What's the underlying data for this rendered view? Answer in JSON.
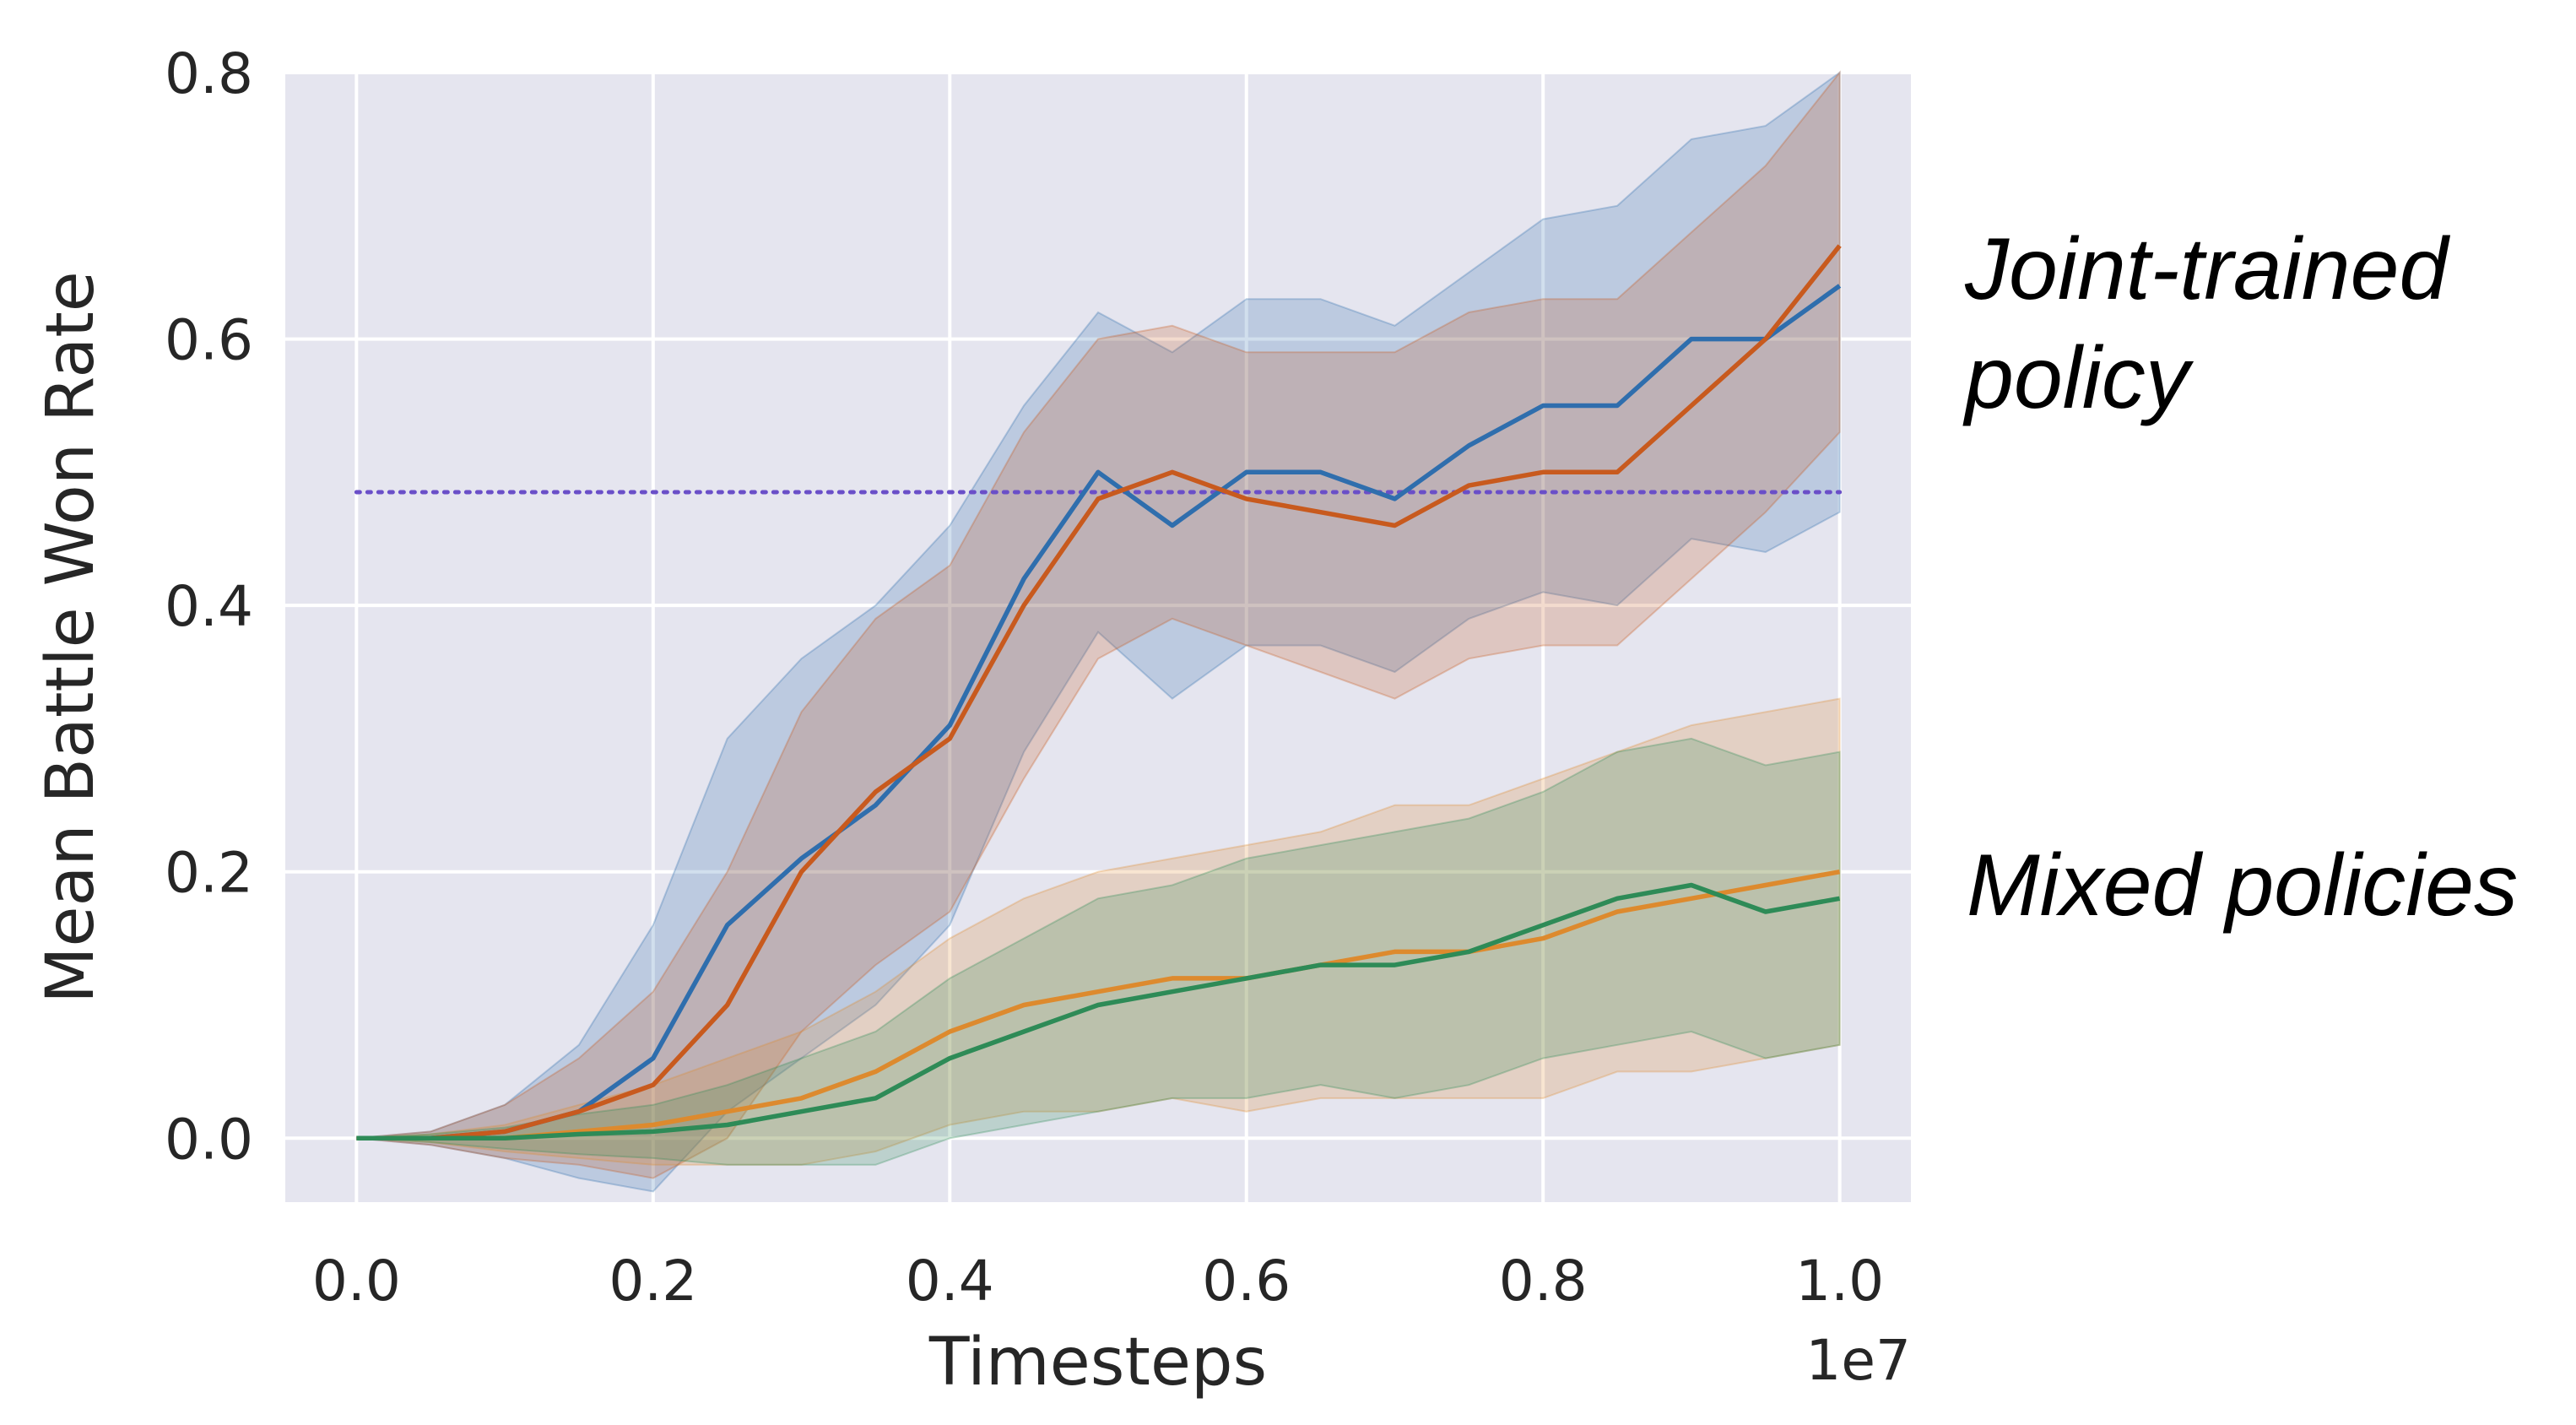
{
  "chart_data": {
    "type": "line",
    "title": "",
    "xlabel": "Timesteps",
    "ylabel": "Mean Battle Won Rate",
    "x_offset_label": "1e7",
    "xlim": [
      -0.048,
      1.048
    ],
    "ylim": [
      -0.048,
      0.8
    ],
    "xticks": [
      "0.0",
      "0.2",
      "0.4",
      "0.6",
      "0.8",
      "1.0"
    ],
    "yticks": [
      "0.0",
      "0.2",
      "0.4",
      "0.6",
      "0.8"
    ],
    "grid": true,
    "background": "#e5e5ef",
    "reference_line": {
      "y": 0.485,
      "style": "dotted",
      "color": "#6a4fc8"
    },
    "annotations": [
      {
        "lines": [
          "Joint-trained",
          "policy"
        ]
      },
      {
        "lines": [
          "Mixed policies"
        ]
      }
    ],
    "x": [
      0.0,
      0.05,
      0.1,
      0.15,
      0.2,
      0.25,
      0.3,
      0.35,
      0.4,
      0.45,
      0.5,
      0.55,
      0.6,
      0.65,
      0.7,
      0.75,
      0.8,
      0.85,
      0.9,
      0.95,
      1.0
    ],
    "series": [
      {
        "color": "#2f6ead",
        "values": [
          0.0,
          0.0,
          0.005,
          0.02,
          0.06,
          0.16,
          0.21,
          0.25,
          0.31,
          0.42,
          0.5,
          0.46,
          0.5,
          0.5,
          0.48,
          0.52,
          0.55,
          0.55,
          0.6,
          0.6,
          0.64
        ],
        "band": [
          0.0,
          0.005,
          0.02,
          0.05,
          0.1,
          0.14,
          0.15,
          0.15,
          0.15,
          0.13,
          0.12,
          0.13,
          0.13,
          0.13,
          0.13,
          0.13,
          0.14,
          0.15,
          0.15,
          0.16,
          0.17
        ]
      },
      {
        "color": "#c85a1e",
        "values": [
          0.0,
          0.0,
          0.005,
          0.02,
          0.04,
          0.1,
          0.2,
          0.26,
          0.3,
          0.4,
          0.48,
          0.5,
          0.48,
          0.47,
          0.46,
          0.49,
          0.5,
          0.5,
          0.55,
          0.6,
          0.67
        ],
        "band": [
          0.0,
          0.005,
          0.02,
          0.04,
          0.07,
          0.1,
          0.12,
          0.13,
          0.13,
          0.13,
          0.12,
          0.11,
          0.11,
          0.12,
          0.13,
          0.13,
          0.13,
          0.13,
          0.13,
          0.13,
          0.14
        ]
      },
      {
        "color": "#dd8a2e",
        "values": [
          0.0,
          0.0,
          0.0,
          0.005,
          0.01,
          0.02,
          0.03,
          0.05,
          0.08,
          0.1,
          0.11,
          0.12,
          0.12,
          0.13,
          0.14,
          0.14,
          0.15,
          0.17,
          0.18,
          0.19,
          0.2
        ],
        "band": [
          0.0,
          0.003,
          0.01,
          0.02,
          0.03,
          0.04,
          0.05,
          0.06,
          0.07,
          0.08,
          0.09,
          0.09,
          0.1,
          0.1,
          0.11,
          0.11,
          0.12,
          0.12,
          0.13,
          0.13,
          0.13
        ]
      },
      {
        "color": "#2e8b57",
        "values": [
          0.0,
          0.0,
          0.0,
          0.003,
          0.005,
          0.01,
          0.02,
          0.03,
          0.06,
          0.08,
          0.1,
          0.11,
          0.12,
          0.13,
          0.13,
          0.14,
          0.16,
          0.18,
          0.19,
          0.17,
          0.18
        ],
        "band": [
          0.0,
          0.003,
          0.008,
          0.015,
          0.02,
          0.03,
          0.04,
          0.05,
          0.06,
          0.07,
          0.08,
          0.08,
          0.09,
          0.09,
          0.1,
          0.1,
          0.1,
          0.11,
          0.11,
          0.11,
          0.11
        ]
      }
    ]
  }
}
